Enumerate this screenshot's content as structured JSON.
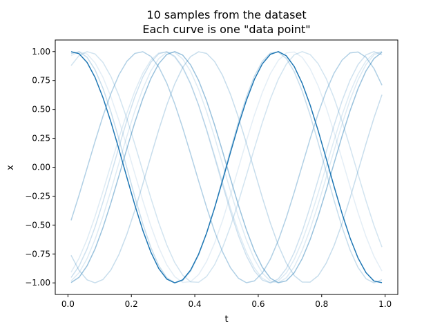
{
  "chart_data": {
    "type": "line",
    "title": "10 samples from the dataset",
    "subtitle": "Each curve is one \"data point\"",
    "xlabel": "t",
    "ylabel": "x",
    "xlim": [
      -0.04,
      1.04
    ],
    "ylim": [
      -1.1,
      1.1
    ],
    "xticks": [
      "0.0",
      "0.2",
      "0.4",
      "0.6",
      "0.8",
      "1.0"
    ],
    "yticks": [
      "-1.00",
      "-0.75",
      "-0.50",
      "-0.25",
      "0.00",
      "0.25",
      "0.50",
      "0.75",
      "1.00"
    ],
    "grid": false,
    "legend": "none",
    "color": "#1f77b4",
    "t_range": [
      0.01,
      0.99
    ],
    "samples_per_curve": 40,
    "model": "x = sin(2*pi*frequency*t + phase)",
    "series": [
      {
        "frequency": 1.55,
        "phase": 1.42,
        "opacity": 1.0
      },
      {
        "frequency": 1.5,
        "phase": -1.59,
        "opacity": 0.45
      },
      {
        "frequency": 1.48,
        "phase": -0.57,
        "opacity": 0.35
      },
      {
        "frequency": 1.5,
        "phase": -2.37,
        "opacity": 0.25
      },
      {
        "frequency": 1.6,
        "phase": 1.28,
        "opacity": 0.25
      },
      {
        "frequency": 1.52,
        "phase": -1.36,
        "opacity": 0.22
      },
      {
        "frequency": 1.48,
        "phase": 0.98,
        "opacity": 0.2
      },
      {
        "frequency": 1.5,
        "phase": -1.48,
        "opacity": 0.15
      },
      {
        "frequency": 1.47,
        "phase": -1.23,
        "opacity": 0.15
      },
      {
        "frequency": 1.5,
        "phase": 1.21,
        "opacity": 0.12
      }
    ]
  }
}
